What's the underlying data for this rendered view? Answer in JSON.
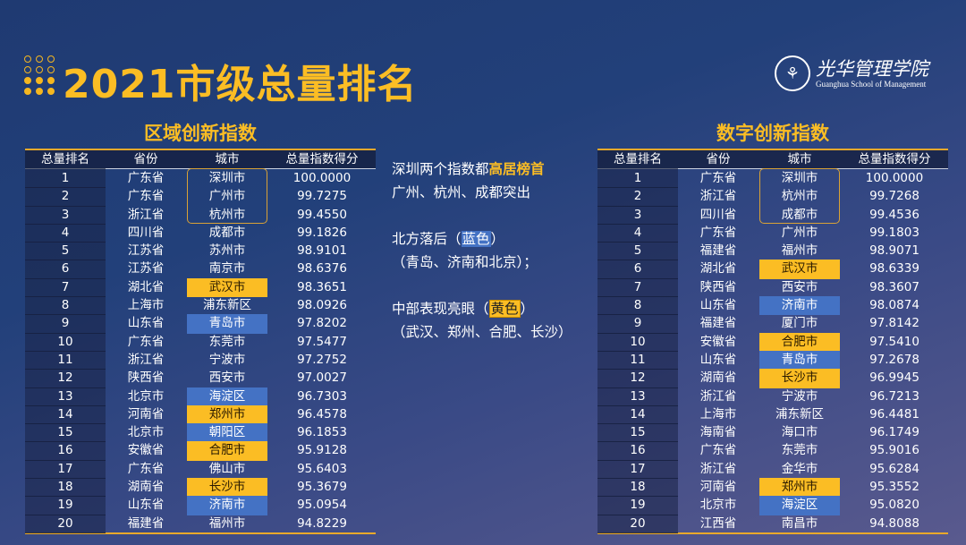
{
  "title": "2021市级总量排名",
  "logo": {
    "cn": "光华管理学院",
    "en": "Guanghua School of Management"
  },
  "colors": {
    "accent": "#fbbd24",
    "blue_highlight": "#4472c4",
    "yellow_highlight": "#fbbd24"
  },
  "columns": [
    "总量排名",
    "省份",
    "城市",
    "总量指数得分"
  ],
  "left": {
    "title": "区域创新指数",
    "rows": [
      [
        "1",
        "广东省",
        "深圳市",
        "100.0000",
        "outline"
      ],
      [
        "2",
        "广东省",
        "广州市",
        "99.7275",
        "outline"
      ],
      [
        "3",
        "浙江省",
        "杭州市",
        "99.4550",
        "outline"
      ],
      [
        "4",
        "四川省",
        "成都市",
        "99.1826",
        ""
      ],
      [
        "5",
        "江苏省",
        "苏州市",
        "98.9101",
        ""
      ],
      [
        "6",
        "江苏省",
        "南京市",
        "98.6376",
        ""
      ],
      [
        "7",
        "湖北省",
        "武汉市",
        "98.3651",
        "yellow"
      ],
      [
        "8",
        "上海市",
        "浦东新区",
        "98.0926",
        ""
      ],
      [
        "9",
        "山东省",
        "青岛市",
        "97.8202",
        "blue"
      ],
      [
        "10",
        "广东省",
        "东莞市",
        "97.5477",
        ""
      ],
      [
        "11",
        "浙江省",
        "宁波市",
        "97.2752",
        ""
      ],
      [
        "12",
        "陕西省",
        "西安市",
        "97.0027",
        ""
      ],
      [
        "13",
        "北京市",
        "海淀区",
        "96.7303",
        "blue"
      ],
      [
        "14",
        "河南省",
        "郑州市",
        "96.4578",
        "yellow"
      ],
      [
        "15",
        "北京市",
        "朝阳区",
        "96.1853",
        "blue"
      ],
      [
        "16",
        "安徽省",
        "合肥市",
        "95.9128",
        "yellow"
      ],
      [
        "17",
        "广东省",
        "佛山市",
        "95.6403",
        ""
      ],
      [
        "18",
        "湖南省",
        "长沙市",
        "95.3679",
        "yellow"
      ],
      [
        "19",
        "山东省",
        "济南市",
        "95.0954",
        "blue"
      ],
      [
        "20",
        "福建省",
        "福州市",
        "94.8229",
        ""
      ]
    ]
  },
  "right": {
    "title": "数字创新指数",
    "rows": [
      [
        "1",
        "广东省",
        "深圳市",
        "100.0000",
        "outline"
      ],
      [
        "2",
        "浙江省",
        "杭州市",
        "99.7268",
        "outline"
      ],
      [
        "3",
        "四川省",
        "成都市",
        "99.4536",
        "outline"
      ],
      [
        "4",
        "广东省",
        "广州市",
        "99.1803",
        ""
      ],
      [
        "5",
        "福建省",
        "福州市",
        "98.9071",
        ""
      ],
      [
        "6",
        "湖北省",
        "武汉市",
        "98.6339",
        "yellow"
      ],
      [
        "7",
        "陕西省",
        "西安市",
        "98.3607",
        ""
      ],
      [
        "8",
        "山东省",
        "济南市",
        "98.0874",
        "blue"
      ],
      [
        "9",
        "福建省",
        "厦门市",
        "97.8142",
        ""
      ],
      [
        "10",
        "安徽省",
        "合肥市",
        "97.5410",
        "yellow"
      ],
      [
        "11",
        "山东省",
        "青岛市",
        "97.2678",
        "blue"
      ],
      [
        "12",
        "湖南省",
        "长沙市",
        "96.9945",
        "yellow"
      ],
      [
        "13",
        "浙江省",
        "宁波市",
        "96.7213",
        ""
      ],
      [
        "14",
        "上海市",
        "浦东新区",
        "96.4481",
        ""
      ],
      [
        "15",
        "海南省",
        "海口市",
        "96.1749",
        ""
      ],
      [
        "16",
        "广东省",
        "东莞市",
        "95.9016",
        ""
      ],
      [
        "17",
        "浙江省",
        "金华市",
        "95.6284",
        ""
      ],
      [
        "18",
        "河南省",
        "郑州市",
        "95.3552",
        "yellow"
      ],
      [
        "19",
        "北京市",
        "海淀区",
        "95.0820",
        "blue"
      ],
      [
        "20",
        "江西省",
        "南昌市",
        "94.8088",
        ""
      ]
    ]
  },
  "notes": {
    "l1a": "深圳两个指数都",
    "l1b": "高居榜首",
    "l2": "广州、杭州、成都突出",
    "l3a": "北方落后（",
    "l3b": "蓝色",
    "l3c": "）",
    "l4": "（青岛、济南和北京）；",
    "l5a": "中部表现亮眼（",
    "l5b": "黄色",
    "l5c": "）",
    "l6": "（武汉、郑州、合肥、长沙）"
  }
}
